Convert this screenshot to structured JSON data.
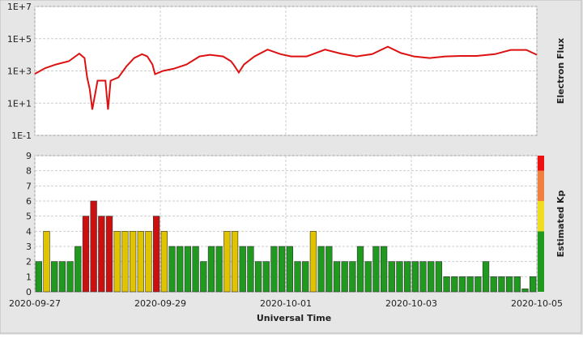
{
  "chart_data": [
    {
      "type": "line",
      "ylabel": "Electron Flux",
      "log_scale": true,
      "grid": true,
      "xlim": [
        "2020-09-27",
        "2020-10-05"
      ],
      "xticks": [
        "2020-09-27",
        "2020-09-29",
        "2020-10-01",
        "2020-10-03",
        "2020-10-05"
      ],
      "ylim": [
        0.1,
        10000000
      ],
      "yticks": [
        {
          "value": 0.1,
          "label": "1E-1"
        },
        {
          "value": 10,
          "label": "1E+1"
        },
        {
          "value": 1000,
          "label": "1E+3"
        },
        {
          "value": 100000,
          "label": "1E+5"
        },
        {
          "value": 10000000,
          "label": "1E+7"
        }
      ],
      "series": [
        {
          "color": "#dd1111",
          "x": [
            "2020-09-27T00:00",
            "2020-09-27T04:00",
            "2020-09-27T08:00",
            "2020-09-27T13:00",
            "2020-09-27T17:00",
            "2020-09-27T19:00",
            "2020-09-27T20:00",
            "2020-09-27T21:00",
            "2020-09-27T22:00",
            "2020-09-28T00:00",
            "2020-09-28T03:00",
            "2020-09-28T04:00",
            "2020-09-28T05:00",
            "2020-09-28T08:00",
            "2020-09-28T11:00",
            "2020-09-28T14:00",
            "2020-09-28T17:00",
            "2020-09-28T19:00",
            "2020-09-28T21:00",
            "2020-09-28T22:00",
            "2020-09-29T01:00",
            "2020-09-29T05:00",
            "2020-09-29T10:00",
            "2020-09-29T15:00",
            "2020-09-29T19:00",
            "2020-09-30T00:00",
            "2020-09-30T03:00",
            "2020-09-30T04:00",
            "2020-09-30T06:00",
            "2020-09-30T08:00",
            "2020-09-30T12:00",
            "2020-09-30T17:00",
            "2020-09-30T22:00",
            "2020-10-01T02:00",
            "2020-10-01T08:00",
            "2020-10-01T15:00",
            "2020-10-01T21:00",
            "2020-10-02T03:00",
            "2020-10-02T09:00",
            "2020-10-02T15:00",
            "2020-10-02T20:00",
            "2020-10-03T01:00",
            "2020-10-03T07:00",
            "2020-10-03T13:00",
            "2020-10-03T19:00",
            "2020-10-04T01:00",
            "2020-10-04T08:00",
            "2020-10-04T14:00",
            "2020-10-04T20:00",
            "2020-10-05T00:00"
          ],
          "values": [
            660,
            1500,
            2500,
            4000,
            12000,
            6300,
            400,
            75,
            4,
            250,
            250,
            4,
            250,
            400,
            1900,
            6300,
            11000,
            8000,
            2500,
            630,
            1000,
            1350,
            2500,
            8000,
            10000,
            8000,
            4000,
            2500,
            800,
            2500,
            8000,
            21000,
            11000,
            8000,
            8000,
            21000,
            12000,
            8000,
            11000,
            32000,
            13000,
            8000,
            6300,
            8000,
            8500,
            8500,
            11000,
            20000,
            20000,
            10000
          ]
        }
      ]
    },
    {
      "type": "bar",
      "ylabel": "Estimated Kp",
      "xlabel": "Universal Time",
      "grid": true,
      "xlim": [
        "2020-09-27",
        "2020-10-05"
      ],
      "xticks": [
        "2020-09-27",
        "2020-09-29",
        "2020-10-01",
        "2020-10-03",
        "2020-10-05"
      ],
      "ylim": [
        0,
        9
      ],
      "yticks": [
        0,
        1,
        2,
        3,
        4,
        5,
        6,
        7,
        8,
        9
      ],
      "bar_colors": [
        {
          "min": 0,
          "color": "#1f9a1f"
        },
        {
          "min": 4,
          "color": "#e0c400"
        },
        {
          "min": 5,
          "color": "#cc1010"
        }
      ],
      "scale_bands": [
        {
          "from": 0,
          "to": 4,
          "color": "#1f9a1f"
        },
        {
          "from": 4,
          "to": 6,
          "color": "#f0dc20"
        },
        {
          "from": 6,
          "to": 8,
          "color": "#f08040"
        },
        {
          "from": 8,
          "to": 9,
          "color": "#ee1010"
        }
      ],
      "values": [
        2,
        4,
        2,
        2,
        2,
        3,
        5,
        6,
        5,
        5,
        4,
        4,
        4,
        4,
        4,
        5,
        4,
        3,
        3,
        3,
        3,
        2,
        3,
        3,
        4,
        4,
        3,
        3,
        2,
        2,
        3,
        3,
        3,
        2,
        2,
        4,
        3,
        3,
        2,
        2,
        2,
        3,
        2,
        3,
        3,
        2,
        2,
        2,
        2,
        2,
        2,
        2,
        1,
        1,
        1,
        1,
        1,
        2,
        1,
        1,
        1,
        1,
        0.2,
        1
      ]
    }
  ]
}
